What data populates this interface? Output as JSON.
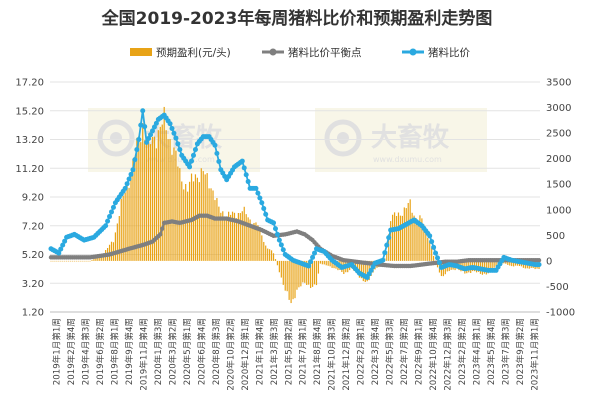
{
  "chart_data": {
    "type": "bar+line",
    "title": "全国2019-2023年每周猪料比价和预期盈利走势图",
    "legend": {
      "placement": "top",
      "items": [
        {
          "key": "profit",
          "label": "预期盈利(元/头)",
          "color": "#e8a317",
          "shape": "bar"
        },
        {
          "key": "balance",
          "label": "猪料比价平衡点",
          "color": "#7f7f7f",
          "shape": "line-marker"
        },
        {
          "key": "ratio",
          "label": "猪料比价",
          "color": "#2aa9e0",
          "shape": "line-marker"
        }
      ]
    },
    "watermark": {
      "brand": "大畜牧",
      "url": "www.dxumu.com"
    },
    "left_axis": {
      "min": 1.2,
      "max": 17.2,
      "ticks": [
        "1.20",
        "3.20",
        "5.20",
        "7.20",
        "9.20",
        "11.20",
        "13.20",
        "15.20",
        "17.20"
      ]
    },
    "right_axis": {
      "min": -1000,
      "max": 3500,
      "ticks": [
        "-1000",
        "-500",
        "0",
        "500",
        "1000",
        "1500",
        "2000",
        "2500",
        "3000",
        "3500"
      ]
    },
    "x_labels": [
      "2019年1月第1周",
      "2019年2月第4周",
      "2019年4月第3周",
      "2019年6月第2周",
      "2019年8月第1周",
      "2019年9月第4周",
      "2019年11月第4周",
      "2020年1月第3周",
      "2020年3月第2周",
      "2020年5月第1周",
      "2020年6月第4周",
      "2020年8月第3周",
      "2020年10月第2周",
      "2020年12月第1周",
      "2021年1月第4周",
      "2021年3月第3周",
      "2021年5月第2周",
      "2021年7月第1周",
      "2021年8月第4周",
      "2021年10月第3周",
      "2021年12月第2周",
      "2022年2月第1周",
      "2022年3月第4周",
      "2022年5月第3周",
      "2022年7月第2周",
      "2022年9月第1周",
      "2022年10月第4周",
      "2022年12月第3周",
      "2023年2月第2周",
      "2023年4月第1周",
      "2023年5月第4周",
      "2023年7月第3周",
      "2023年9月第2周",
      "2023年11月第1周"
    ],
    "x_count": 251,
    "series": [
      {
        "key": "ratio",
        "name": "猪料比价",
        "axis": "left",
        "anchors": [
          [
            0,
            5.6
          ],
          [
            4,
            5.3
          ],
          [
            8,
            6.4
          ],
          [
            12,
            6.6
          ],
          [
            17,
            6.2
          ],
          [
            22,
            6.4
          ],
          [
            28,
            7.2
          ],
          [
            33,
            8.8
          ],
          [
            38,
            9.8
          ],
          [
            42,
            11.1
          ],
          [
            45,
            13.2
          ],
          [
            47,
            15.2
          ],
          [
            49,
            13.0
          ],
          [
            52,
            13.8
          ],
          [
            55,
            14.6
          ],
          [
            58,
            14.9
          ],
          [
            61,
            14.3
          ],
          [
            64,
            13.3
          ],
          [
            67,
            12.1
          ],
          [
            71,
            11.3
          ],
          [
            75,
            12.9
          ],
          [
            78,
            13.4
          ],
          [
            81,
            13.4
          ],
          [
            84,
            12.8
          ],
          [
            87,
            11.1
          ],
          [
            90,
            10.4
          ],
          [
            94,
            11.3
          ],
          [
            98,
            11.7
          ],
          [
            102,
            9.8
          ],
          [
            105,
            9.8
          ],
          [
            108,
            8.8
          ],
          [
            111,
            7.6
          ],
          [
            114,
            7.4
          ],
          [
            117,
            6.2
          ],
          [
            120,
            5.2
          ],
          [
            124,
            4.8
          ],
          [
            128,
            4.6
          ],
          [
            132,
            4.4
          ],
          [
            136,
            5.6
          ],
          [
            140,
            5.4
          ],
          [
            144,
            4.8
          ],
          [
            149,
            4.3
          ],
          [
            154,
            4.5
          ],
          [
            158,
            3.9
          ],
          [
            162,
            3.6
          ],
          [
            166,
            4.6
          ],
          [
            170,
            4.8
          ],
          [
            174,
            6.9
          ],
          [
            178,
            7.0
          ],
          [
            182,
            7.3
          ],
          [
            186,
            7.6
          ],
          [
            190,
            7.2
          ],
          [
            194,
            6.5
          ],
          [
            197,
            5.3
          ],
          [
            200,
            4.3
          ],
          [
            204,
            4.5
          ],
          [
            208,
            4.4
          ],
          [
            212,
            4.2
          ],
          [
            216,
            4.3
          ],
          [
            220,
            4.2
          ],
          [
            224,
            4.1
          ],
          [
            228,
            4.1
          ],
          [
            232,
            5.0
          ],
          [
            236,
            4.8
          ],
          [
            240,
            4.7
          ],
          [
            244,
            4.6
          ],
          [
            248,
            4.5
          ],
          [
            250,
            4.5
          ]
        ]
      },
      {
        "key": "balance",
        "name": "猪料比价平衡点",
        "axis": "left",
        "anchors": [
          [
            0,
            5.0
          ],
          [
            20,
            5.0
          ],
          [
            30,
            5.2
          ],
          [
            40,
            5.6
          ],
          [
            48,
            5.9
          ],
          [
            52,
            6.1
          ],
          [
            56,
            6.6
          ],
          [
            58,
            7.4
          ],
          [
            62,
            7.5
          ],
          [
            66,
            7.4
          ],
          [
            72,
            7.6
          ],
          [
            76,
            7.9
          ],
          [
            80,
            7.9
          ],
          [
            84,
            7.7
          ],
          [
            90,
            7.7
          ],
          [
            96,
            7.5
          ],
          [
            102,
            7.2
          ],
          [
            108,
            6.9
          ],
          [
            114,
            6.5
          ],
          [
            120,
            6.6
          ],
          [
            126,
            6.8
          ],
          [
            130,
            6.6
          ],
          [
            134,
            6.2
          ],
          [
            138,
            5.6
          ],
          [
            144,
            5.1
          ],
          [
            150,
            4.8
          ],
          [
            156,
            4.7
          ],
          [
            162,
            4.6
          ],
          [
            168,
            4.5
          ],
          [
            176,
            4.4
          ],
          [
            184,
            4.4
          ],
          [
            190,
            4.5
          ],
          [
            196,
            4.6
          ],
          [
            202,
            4.7
          ],
          [
            208,
            4.7
          ],
          [
            214,
            4.8
          ],
          [
            222,
            4.8
          ],
          [
            230,
            4.8
          ],
          [
            240,
            4.8
          ],
          [
            250,
            4.8
          ]
        ]
      },
      {
        "key": "profit",
        "name": "预期盈利(元/头)",
        "axis": "right",
        "anchors": [
          [
            0,
            0
          ],
          [
            20,
            0
          ],
          [
            26,
            100
          ],
          [
            32,
            400
          ],
          [
            36,
            1100
          ],
          [
            40,
            1600
          ],
          [
            44,
            2200
          ],
          [
            47,
            2700
          ],
          [
            50,
            2200
          ],
          [
            54,
            2500
          ],
          [
            58,
            2700
          ],
          [
            62,
            2300
          ],
          [
            66,
            1700
          ],
          [
            70,
            1400
          ],
          [
            74,
            1700
          ],
          [
            78,
            1700
          ],
          [
            82,
            1500
          ],
          [
            86,
            1000
          ],
          [
            90,
            900
          ],
          [
            94,
            900
          ],
          [
            98,
            1000
          ],
          [
            102,
            800
          ],
          [
            106,
            700
          ],
          [
            110,
            300
          ],
          [
            114,
            150
          ],
          [
            117,
            -200
          ],
          [
            120,
            -600
          ],
          [
            123,
            -800
          ],
          [
            126,
            -600
          ],
          [
            130,
            -400
          ],
          [
            134,
            -550
          ],
          [
            136,
            -450
          ],
          [
            138,
            -50
          ],
          [
            142,
            -100
          ],
          [
            146,
            -150
          ],
          [
            150,
            -250
          ],
          [
            154,
            -150
          ],
          [
            158,
            -300
          ],
          [
            162,
            -450
          ],
          [
            166,
            -150
          ],
          [
            170,
            -100
          ],
          [
            172,
            200
          ],
          [
            174,
            850
          ],
          [
            178,
            900
          ],
          [
            182,
            1050
          ],
          [
            184,
            1100
          ],
          [
            186,
            900
          ],
          [
            190,
            800
          ],
          [
            194,
            400
          ],
          [
            197,
            -50
          ],
          [
            200,
            -300
          ],
          [
            204,
            -200
          ],
          [
            208,
            -150
          ],
          [
            212,
            -250
          ],
          [
            216,
            -200
          ],
          [
            220,
            -250
          ],
          [
            224,
            -250
          ],
          [
            228,
            -100
          ],
          [
            232,
            -50
          ],
          [
            236,
            -100
          ],
          [
            240,
            -100
          ],
          [
            244,
            -150
          ],
          [
            248,
            -150
          ],
          [
            250,
            -150
          ]
        ]
      }
    ]
  }
}
